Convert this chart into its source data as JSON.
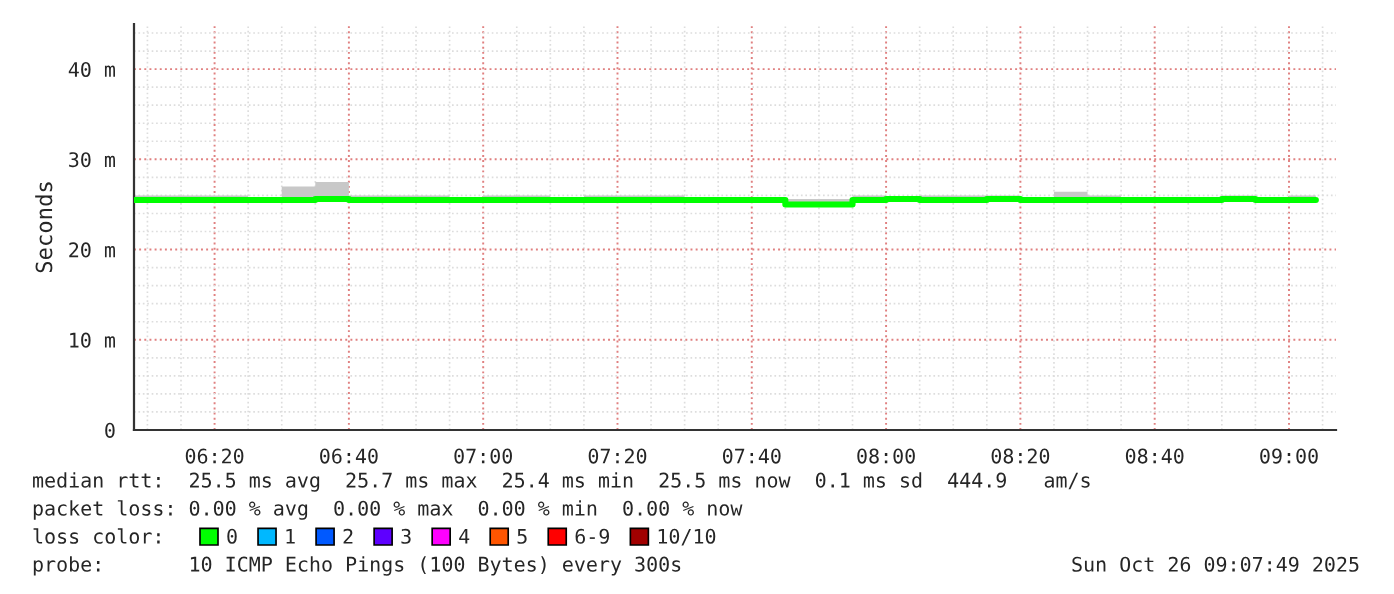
{
  "chart_data": {
    "type": "step",
    "ylabel": "Seconds",
    "legend_title": "loss color:",
    "legend": "bottom",
    "grid": true,
    "xlim": [
      "2025-10-26T06:08",
      "2025-10-26T09:07"
    ],
    "xticks": [
      {
        "value": "2025-10-26T06:20",
        "label": "06:20"
      },
      {
        "value": "2025-10-26T06:40",
        "label": "06:40"
      },
      {
        "value": "2025-10-26T07:00",
        "label": "07:00"
      },
      {
        "value": "2025-10-26T07:20",
        "label": "07:20"
      },
      {
        "value": "2025-10-26T07:40",
        "label": "07:40"
      },
      {
        "value": "2025-10-26T08:00",
        "label": "08:00"
      },
      {
        "value": "2025-10-26T08:20",
        "label": "08:20"
      },
      {
        "value": "2025-10-26T08:40",
        "label": "08:40"
      },
      {
        "value": "2025-10-26T09:00",
        "label": "09:00"
      }
    ],
    "ylim": [
      0,
      45
    ],
    "yticks": [
      {
        "value": 0,
        "label": "0"
      },
      {
        "value": 10,
        "label": "10 m"
      },
      {
        "value": 20,
        "label": "20 m"
      },
      {
        "value": 30,
        "label": "30 m"
      },
      {
        "value": 40,
        "label": "40 m"
      }
    ],
    "x": [
      "2025-10-26T06:08",
      "2025-10-26T06:10",
      "2025-10-26T06:15",
      "2025-10-26T06:20",
      "2025-10-26T06:25",
      "2025-10-26T06:30",
      "2025-10-26T06:35",
      "2025-10-26T06:40",
      "2025-10-26T06:45",
      "2025-10-26T06:50",
      "2025-10-26T06:55",
      "2025-10-26T07:00",
      "2025-10-26T07:05",
      "2025-10-26T07:10",
      "2025-10-26T07:15",
      "2025-10-26T07:20",
      "2025-10-26T07:25",
      "2025-10-26T07:30",
      "2025-10-26T07:35",
      "2025-10-26T07:40",
      "2025-10-26T07:45",
      "2025-10-26T07:50",
      "2025-10-26T07:55",
      "2025-10-26T08:00",
      "2025-10-26T08:05",
      "2025-10-26T08:10",
      "2025-10-26T08:15",
      "2025-10-26T08:20",
      "2025-10-26T08:25",
      "2025-10-26T08:30",
      "2025-10-26T08:35",
      "2025-10-26T08:40",
      "2025-10-26T08:45",
      "2025-10-26T08:50",
      "2025-10-26T08:55",
      "2025-10-26T09:00",
      "2025-10-26T09:04"
    ],
    "series": [
      {
        "name": "0",
        "color": "#00ff00",
        "values": [
          25.5,
          25.5,
          25.5,
          25.5,
          25.5,
          25.5,
          25.6,
          25.5,
          25.5,
          25.5,
          25.5,
          25.5,
          25.5,
          25.5,
          25.5,
          25.5,
          25.5,
          25.5,
          25.5,
          25.5,
          25.0,
          25.0,
          25.5,
          25.6,
          25.5,
          25.5,
          25.6,
          25.5,
          25.5,
          25.5,
          25.5,
          25.5,
          25.5,
          25.6,
          25.5,
          25.5,
          25.5
        ],
        "lower": [
          25.3,
          25.3,
          25.3,
          25.3,
          25.3,
          25.3,
          25.3,
          25.3,
          25.3,
          25.3,
          25.3,
          25.3,
          25.3,
          25.3,
          25.3,
          25.3,
          25.3,
          25.3,
          25.3,
          25.3,
          25.0,
          25.0,
          25.3,
          25.3,
          25.3,
          25.3,
          25.3,
          25.3,
          25.3,
          25.3,
          25.3,
          25.3,
          25.3,
          25.3,
          25.3,
          25.3,
          25.3
        ],
        "upper": [
          26.0,
          26.0,
          26.0,
          26.0,
          25.5,
          27.0,
          27.5,
          26.0,
          26.0,
          26.0,
          25.5,
          26.0,
          26.0,
          25.5,
          26.0,
          26.0,
          26.0,
          25.8,
          25.8,
          25.6,
          25.6,
          25.6,
          26.0,
          25.8,
          26.0,
          26.0,
          26.0,
          25.6,
          26.4,
          26.0,
          25.6,
          25.8,
          25.6,
          26.0,
          25.6,
          26.0,
          26.0
        ]
      },
      {
        "name": "1",
        "color": "#00b8ff",
        "values": [
          null,
          null,
          null,
          null,
          null,
          null,
          null,
          null,
          null,
          null,
          null,
          null,
          null,
          null,
          null,
          null,
          null,
          null,
          null,
          null,
          null,
          null,
          null,
          null,
          null,
          null,
          null,
          null,
          null,
          null,
          null,
          null,
          null,
          null,
          null,
          null,
          null
        ]
      },
      {
        "name": "2",
        "color": "#0059ff",
        "values": [
          null,
          null,
          null,
          null,
          null,
          null,
          null,
          null,
          null,
          null,
          null,
          null,
          null,
          null,
          null,
          null,
          null,
          null,
          null,
          null,
          null,
          null,
          null,
          null,
          null,
          null,
          null,
          null,
          null,
          null,
          null,
          null,
          null,
          null,
          null,
          null,
          null
        ]
      },
      {
        "name": "3",
        "color": "#5e00ff",
        "values": [
          null,
          null,
          null,
          null,
          null,
          null,
          null,
          null,
          null,
          null,
          null,
          null,
          null,
          null,
          null,
          null,
          null,
          null,
          null,
          null,
          null,
          null,
          null,
          null,
          null,
          null,
          null,
          null,
          null,
          null,
          null,
          null,
          null,
          null,
          null,
          null,
          null
        ]
      },
      {
        "name": "4",
        "color": "#ff00ff",
        "values": [
          null,
          null,
          null,
          null,
          null,
          null,
          null,
          null,
          null,
          null,
          null,
          null,
          null,
          null,
          null,
          null,
          null,
          null,
          null,
          null,
          null,
          null,
          null,
          null,
          null,
          null,
          null,
          null,
          null,
          null,
          null,
          null,
          null,
          null,
          null,
          null,
          null
        ]
      },
      {
        "name": "5",
        "color": "#ff5500",
        "values": [
          null,
          null,
          null,
          null,
          null,
          null,
          null,
          null,
          null,
          null,
          null,
          null,
          null,
          null,
          null,
          null,
          null,
          null,
          null,
          null,
          null,
          null,
          null,
          null,
          null,
          null,
          null,
          null,
          null,
          null,
          null,
          null,
          null,
          null,
          null,
          null,
          null
        ]
      },
      {
        "name": "6-9",
        "color": "#ff0000",
        "values": [
          null,
          null,
          null,
          null,
          null,
          null,
          null,
          null,
          null,
          null,
          null,
          null,
          null,
          null,
          null,
          null,
          null,
          null,
          null,
          null,
          null,
          null,
          null,
          null,
          null,
          null,
          null,
          null,
          null,
          null,
          null,
          null,
          null,
          null,
          null,
          null,
          null
        ]
      },
      {
        "name": "10/10",
        "color": "#a10000",
        "values": [
          null,
          null,
          null,
          null,
          null,
          null,
          null,
          null,
          null,
          null,
          null,
          null,
          null,
          null,
          null,
          null,
          null,
          null,
          null,
          null,
          null,
          null,
          null,
          null,
          null,
          null,
          null,
          null,
          null,
          null,
          null,
          null,
          null,
          null,
          null,
          null,
          null
        ]
      }
    ],
    "annotations": [
      "median rtt:  25.5 ms avg  25.7 ms max  25.4 ms min  25.5 ms now  0.1 ms sd  444.9   am/s",
      "packet loss: 0.00 % avg  0.00 % max  0.00 % min  0.00 % now",
      "probe:       10 ICMP Echo Pings (100 Bytes) every 300s",
      "Sun Oct 26 09:07:49 2025"
    ]
  }
}
